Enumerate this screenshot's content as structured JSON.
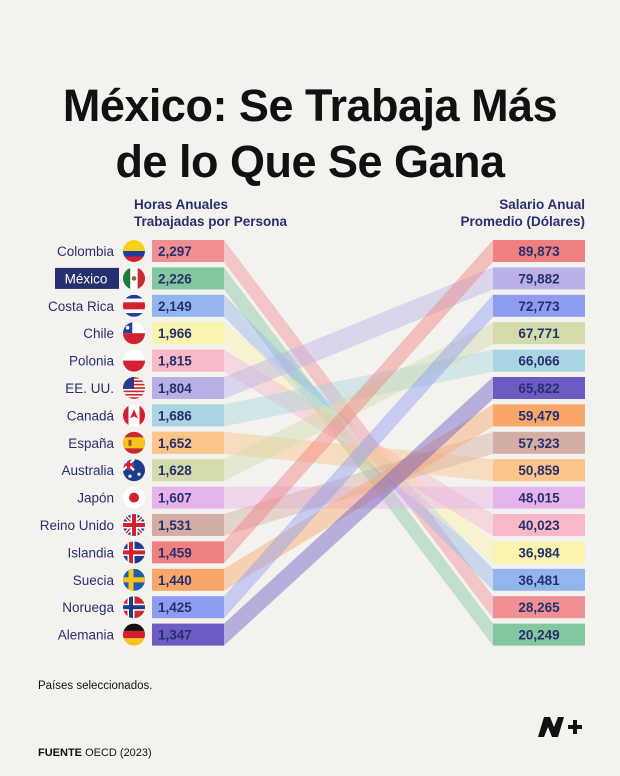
{
  "title_line1": "México: Se Trabaja Más",
  "title_line2": "de lo Que Se Gana",
  "left_header_line1": "Horas Anuales",
  "left_header_line2": "Trabajadas por Persona",
  "right_header_line1": "Salario Anual",
  "right_header_line2": "Promedio (Dólares)",
  "note": "Países seleccionados.",
  "source_label": "FUENTE",
  "source_text": "OECD (2023)",
  "highlight_color": "#27306e",
  "chart_data": {
    "type": "slope",
    "left_axis_label": "Horas Anuales Trabajadas por Persona",
    "right_axis_label": "Salario Anual Promedio (Dólares)",
    "left": [
      {
        "country": "Colombia",
        "hours": "2,297",
        "flag": "colombia-flag",
        "color": "#ef8f94",
        "highlight": false
      },
      {
        "country": "México",
        "hours": "2,226",
        "flag": "mexico-flag",
        "color": "#82c7a0",
        "highlight": true
      },
      {
        "country": "Costa Rica",
        "hours": "2,149",
        "flag": "costa-rica-flag",
        "color": "#93b5ee",
        "highlight": false
      },
      {
        "country": "Chile",
        "hours": "1,966",
        "flag": "chile-flag",
        "color": "#faf3ae",
        "highlight": false
      },
      {
        "country": "Polonia",
        "hours": "1,815",
        "flag": "poland-flag",
        "color": "#f7b8c8",
        "highlight": false
      },
      {
        "country": "EE. UU.",
        "hours": "1,804",
        "flag": "usa-flag",
        "color": "#b9b1e6",
        "highlight": false
      },
      {
        "country": "Canadá",
        "hours": "1,686",
        "flag": "canada-flag",
        "color": "#a9d4e2",
        "highlight": false
      },
      {
        "country": "España",
        "hours": "1,652",
        "flag": "spain-flag",
        "color": "#fbc488",
        "highlight": false
      },
      {
        "country": "Australia",
        "hours": "1,628",
        "flag": "australia-flag",
        "color": "#d2dcab",
        "highlight": false
      },
      {
        "country": "Japón",
        "hours": "1,607",
        "flag": "japan-flag",
        "color": "#e6b4ec",
        "highlight": false
      },
      {
        "country": "Reino Unido",
        "hours": "1,531",
        "flag": "uk-flag",
        "color": "#d4aea4",
        "highlight": false
      },
      {
        "country": "Islandia",
        "hours": "1,459",
        "flag": "iceland-flag",
        "color": "#f08080",
        "highlight": false
      },
      {
        "country": "Suecia",
        "hours": "1,440",
        "flag": "sweden-flag",
        "color": "#f9a66b",
        "highlight": false
      },
      {
        "country": "Noruega",
        "hours": "1,425",
        "flag": "norway-flag",
        "color": "#8d9bf0",
        "highlight": false
      },
      {
        "country": "Alemania",
        "hours": "1,347",
        "flag": "germany-flag",
        "color": "#6d5bc4",
        "highlight": false
      }
    ],
    "right": [
      {
        "country": "Islandia",
        "salary": "89,873",
        "color": "#f08080"
      },
      {
        "country": "EE. UU.",
        "salary": "79,882",
        "color": "#b9b1e6"
      },
      {
        "country": "Noruega",
        "salary": "72,773",
        "color": "#8d9bf0"
      },
      {
        "country": "Australia",
        "salary": "67,771",
        "color": "#d2dcab"
      },
      {
        "country": "Canadá",
        "salary": "66,066",
        "color": "#a9d4e2"
      },
      {
        "country": "Alemania",
        "salary": "65,822",
        "color": "#6d5bc4"
      },
      {
        "country": "Suecia",
        "salary": "59,479",
        "color": "#f9a66b"
      },
      {
        "country": "Reino Unido",
        "salary": "57,323",
        "color": "#d4aea4"
      },
      {
        "country": "España",
        "salary": "50,859",
        "color": "#fbc488"
      },
      {
        "country": "Japón",
        "salary": "48,015",
        "color": "#e6b4ec"
      },
      {
        "country": "Polonia",
        "salary": "40,023",
        "color": "#f7b8c8"
      },
      {
        "country": "Chile",
        "salary": "36,984",
        "color": "#faf3ae"
      },
      {
        "country": "Costa Rica",
        "salary": "36,481",
        "color": "#93b5ee"
      },
      {
        "country": "Colombia",
        "salary": "28,265",
        "color": "#ef8f94"
      },
      {
        "country": "México",
        "salary": "20,249",
        "color": "#82c7a0"
      }
    ]
  }
}
